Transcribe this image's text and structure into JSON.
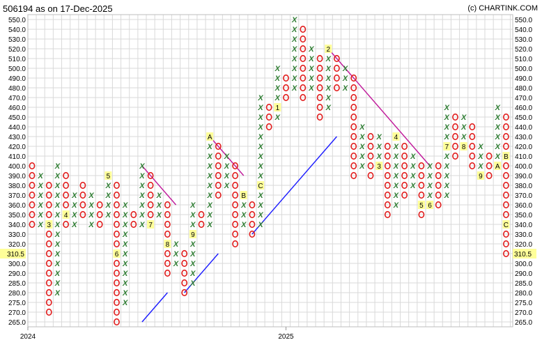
{
  "title": "506194 as on 17-Dec-2025",
  "copyright": "(c) CHARTINK.COM",
  "chart_data": {
    "type": "point-and-figure",
    "title": "506194 as on 17-Dec-2025",
    "y_ticks": [
      550.0,
      540.0,
      530.0,
      520.0,
      510.0,
      500.0,
      490.0,
      480.0,
      470.0,
      460.0,
      450.0,
      440.0,
      430.0,
      420.0,
      410.0,
      400.0,
      390.0,
      380.0,
      370.0,
      360.0,
      350.0,
      340.0,
      330.0,
      320.0,
      310.0,
      300.0,
      290.0,
      285.0,
      280.0,
      275.0,
      270.0,
      265.0
    ],
    "y_tick_labels": [
      "550.0",
      "540.0",
      "530.0",
      "520.0",
      "510.0",
      "500.0",
      "490.0",
      "480.0",
      "470.0",
      "460.0",
      "450.0",
      "440.0",
      "430.0",
      "420.0",
      "410.0",
      "400.0",
      "390.0",
      "380.0",
      "370.0",
      "360.0",
      "350.0",
      "340.0",
      "330.0",
      "320.0",
      "310.0",
      "300.0",
      "290.0",
      "285.0",
      "280.0",
      "275.0",
      "270.0",
      "265.0"
    ],
    "current_price": "310.5",
    "x_year_labels": [
      {
        "column": 0,
        "label": "2024"
      },
      {
        "column": 30,
        "label": "2025"
      }
    ],
    "columns": [
      {
        "type": "O",
        "high": 400.0,
        "low": 340.0
      },
      {
        "type": "X",
        "high": 390.0,
        "low": 340.0
      },
      {
        "type": "O",
        "high": 380.0,
        "low": 270.0,
        "labels": [
          {
            "price": 340.0,
            "text": "3"
          }
        ]
      },
      {
        "type": "X",
        "high": 400.0,
        "low": 280.0
      },
      {
        "type": "O",
        "high": 390.0,
        "low": 340.0,
        "labels": [
          {
            "price": 350.0,
            "text": "4"
          }
        ]
      },
      {
        "type": "X",
        "high": 370.0,
        "low": 340.0
      },
      {
        "type": "O",
        "high": 380.0,
        "low": 350.0
      },
      {
        "type": "X",
        "high": 370.0,
        "low": 340.0
      },
      {
        "type": "O",
        "high": 360.0,
        "low": 340.0
      },
      {
        "type": "X",
        "high": 390.0,
        "low": 350.0,
        "labels": [
          {
            "price": 390.0,
            "text": "5"
          }
        ]
      },
      {
        "type": "O",
        "high": 380.0,
        "low": 265.0,
        "labels": [
          {
            "price": 310.0,
            "text": "6"
          }
        ]
      },
      {
        "type": "X",
        "high": 360.0,
        "low": 275.0
      },
      {
        "type": "O",
        "high": 350.0,
        "low": 340.0
      },
      {
        "type": "X",
        "high": 400.0,
        "low": 340.0
      },
      {
        "type": "O",
        "high": 390.0,
        "low": 340.0,
        "labels": [
          {
            "price": 340.0,
            "text": "7"
          }
        ]
      },
      {
        "type": "X",
        "high": 370.0,
        "low": 350.0
      },
      {
        "type": "O",
        "high": 360.0,
        "low": 290.0,
        "labels": [
          {
            "price": 320.0,
            "text": "8"
          }
        ]
      },
      {
        "type": "X",
        "high": 320.0,
        "low": 300.0
      },
      {
        "type": "O",
        "high": 310.0,
        "low": 280.0
      },
      {
        "type": "X",
        "high": 360.0,
        "low": 285.0,
        "labels": [
          {
            "price": 330.0,
            "text": "9"
          }
        ]
      },
      {
        "type": "O",
        "high": 350.0,
        "low": 340.0
      },
      {
        "type": "X",
        "high": 430.0,
        "low": 340.0,
        "labels": [
          {
            "price": 430.0,
            "text": "A"
          }
        ]
      },
      {
        "type": "O",
        "high": 420.0,
        "low": 370.0
      },
      {
        "type": "X",
        "high": 410.0,
        "low": 380.0
      },
      {
        "type": "O",
        "high": 400.0,
        "low": 320.0
      },
      {
        "type": "X",
        "high": 370.0,
        "low": 340.0,
        "labels": [
          {
            "price": 370.0,
            "text": "B"
          }
        ]
      },
      {
        "type": "O",
        "high": 360.0,
        "low": 330.0
      },
      {
        "type": "X",
        "high": 470.0,
        "low": 340.0,
        "labels": [
          {
            "price": 380.0,
            "text": "C"
          }
        ]
      },
      {
        "type": "O",
        "high": 460.0,
        "low": 440.0
      },
      {
        "type": "X",
        "high": 500.0,
        "low": 450.0,
        "labels": [
          {
            "price": 460.0,
            "text": "1"
          }
        ]
      },
      {
        "type": "O",
        "high": 490.0,
        "low": 470.0
      },
      {
        "type": "X",
        "high": 550.0,
        "low": 480.0
      },
      {
        "type": "O",
        "high": 540.0,
        "low": 470.0
      },
      {
        "type": "X",
        "high": 520.0,
        "low": 480.0
      },
      {
        "type": "O",
        "high": 510.0,
        "low": 450.0
      },
      {
        "type": "X",
        "high": 520.0,
        "low": 460.0,
        "labels": [
          {
            "price": 520.0,
            "text": "2"
          }
        ]
      },
      {
        "type": "O",
        "high": 510.0,
        "low": 480.0
      },
      {
        "type": "X",
        "high": 500.0,
        "low": 480.0
      },
      {
        "type": "O",
        "high": 490.0,
        "low": 390.0
      },
      {
        "type": "X",
        "high": 440.0,
        "low": 400.0
      },
      {
        "type": "O",
        "high": 430.0,
        "low": 390.0
      },
      {
        "type": "X",
        "high": 430.0,
        "low": 400.0,
        "labels": [
          {
            "price": 400.0,
            "text": "3"
          }
        ]
      },
      {
        "type": "O",
        "high": 420.0,
        "low": 350.0
      },
      {
        "type": "X",
        "high": 430.0,
        "low": 360.0,
        "labels": [
          {
            "price": 430.0,
            "text": "4"
          }
        ]
      },
      {
        "type": "O",
        "high": 420.0,
        "low": 370.0
      },
      {
        "type": "X",
        "high": 410.0,
        "low": 380.0
      },
      {
        "type": "O",
        "high": 400.0,
        "low": 350.0,
        "labels": [
          {
            "price": 360.0,
            "text": "5"
          }
        ]
      },
      {
        "type": "X",
        "high": 400.0,
        "low": 360.0,
        "labels": [
          {
            "price": 360.0,
            "text": "6"
          }
        ]
      },
      {
        "type": "O",
        "high": 400.0,
        "low": 360.0
      },
      {
        "type": "X",
        "high": 460.0,
        "low": 370.0,
        "labels": [
          {
            "price": 420.0,
            "text": "7"
          }
        ]
      },
      {
        "type": "O",
        "high": 450.0,
        "low": 410.0
      },
      {
        "type": "X",
        "high": 450.0,
        "low": 420.0,
        "labels": [
          {
            "price": 420.0,
            "text": "8"
          }
        ]
      },
      {
        "type": "O",
        "high": 440.0,
        "low": 400.0
      },
      {
        "type": "X",
        "high": 420.0,
        "low": 390.0,
        "labels": [
          {
            "price": 390.0,
            "text": "9"
          }
        ]
      },
      {
        "type": "O",
        "high": 410.0,
        "low": 390.0
      },
      {
        "type": "X",
        "high": 460.0,
        "low": 400.0,
        "labels": [
          {
            "price": 400.0,
            "text": "A"
          }
        ]
      },
      {
        "type": "O",
        "high": 450.0,
        "low": 310.0,
        "labels": [
          {
            "price": 410.0,
            "text": "B"
          },
          {
            "price": 340.0,
            "text": "C"
          }
        ]
      }
    ],
    "trendlines": [
      {
        "kind": "resistance",
        "color": "#c0189a",
        "from": {
          "column": 13,
          "price": 400.0
        },
        "to": {
          "column": 17,
          "price": 360.0
        }
      },
      {
        "kind": "support",
        "color": "#1a1aff",
        "from": {
          "column": 13,
          "price": 265.0
        },
        "to": {
          "column": 16,
          "price": 280.0
        }
      },
      {
        "kind": "support",
        "color": "#1a1aff",
        "from": {
          "column": 18,
          "price": 280.0
        },
        "to": {
          "column": 22,
          "price": 310.0
        }
      },
      {
        "kind": "resistance",
        "color": "#c0189a",
        "from": {
          "column": 21,
          "price": 430.0
        },
        "to": {
          "column": 25,
          "price": 390.0
        }
      },
      {
        "kind": "support",
        "color": "#1a1aff",
        "from": {
          "column": 26,
          "price": 330.0
        },
        "to": {
          "column": 36,
          "price": 430.0
        }
      },
      {
        "kind": "resistance",
        "color": "#c0189a",
        "from": {
          "column": 35,
          "price": 520.0
        },
        "to": {
          "column": 47,
          "price": 400.0
        }
      }
    ],
    "grid": true,
    "colors": {
      "x": "#2e7d32",
      "o": "#e11d1d",
      "label_bg": "#ffff99",
      "price_box": "#ffff99",
      "grid": "#d9d9d9"
    }
  }
}
